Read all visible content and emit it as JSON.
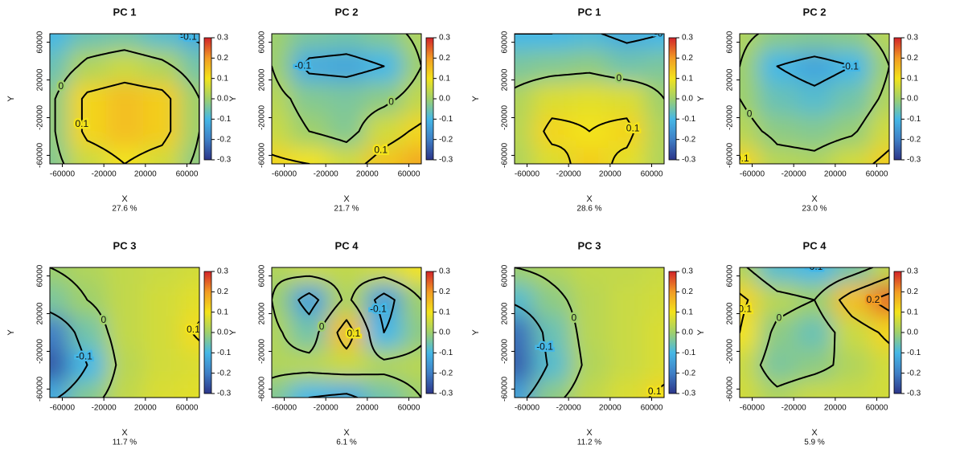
{
  "chart_data": [
    {
      "type": "heatmap",
      "title": "PC 1",
      "xlabel": "X",
      "ylabel": "Y",
      "subtitle": "27.6 %",
      "xlim": [
        -72000,
        72000
      ],
      "ylim": [
        -69000,
        69000
      ],
      "xticks": [
        -60000,
        -20000,
        20000,
        60000
      ],
      "yticks": [
        -60000,
        -20000,
        20000,
        60000
      ],
      "z": [
        [
          -0.1,
          -0.06,
          -0.05,
          -0.08,
          -0.12
        ],
        [
          -0.06,
          0.02,
          0.05,
          0.02,
          -0.05
        ],
        [
          -0.02,
          0.12,
          0.15,
          0.13,
          0.0
        ],
        [
          -0.02,
          0.12,
          0.15,
          0.13,
          0.0
        ],
        [
          -0.03,
          0.05,
          0.1,
          0.06,
          -0.02
        ]
      ],
      "contours": [
        -0.1,
        0,
        0.1
      ],
      "clim": [
        -0.3,
        0.3
      ],
      "cticks": [
        0.3,
        0.2,
        0.1,
        {
          "value": 0,
          "label": "0.0"
        },
        -0.1,
        -0.2,
        -0.3
      ],
      "colors": [
        "#2c3589",
        "#3f7fc6",
        "#45b7e6",
        "#9fd06c",
        "#f3e31b",
        "#f29b24",
        "#d2232a"
      ]
    },
    {
      "type": "heatmap",
      "title": "PC 2",
      "xlabel": "X",
      "ylabel": "Y",
      "subtitle": "21.7 %",
      "xlim": [
        -72000,
        72000
      ],
      "ylim": [
        -69000,
        69000
      ],
      "xticks": [
        -60000,
        -20000,
        20000,
        60000
      ],
      "yticks": [
        -60000,
        -20000,
        20000,
        60000
      ],
      "z": [
        [
          0.0,
          -0.04,
          -0.05,
          -0.03,
          0.02
        ],
        [
          0.0,
          -0.12,
          -0.13,
          -0.1,
          0.0
        ],
        [
          0.03,
          -0.03,
          -0.04,
          -0.02,
          0.04
        ],
        [
          0.05,
          0.0,
          -0.03,
          0.06,
          0.12
        ],
        [
          0.12,
          0.1,
          0.06,
          0.14,
          0.18
        ]
      ],
      "contours": [
        -0.1,
        0,
        0.1
      ],
      "clim": [
        -0.3,
        0.3
      ],
      "cticks": [
        0.3,
        0.2,
        0.1,
        {
          "value": 0,
          "label": "0.0"
        },
        -0.1,
        -0.2,
        -0.3
      ],
      "colors": [
        "#2c3589",
        "#3f7fc6",
        "#45b7e6",
        "#9fd06c",
        "#f3e31b",
        "#f29b24",
        "#d2232a"
      ]
    },
    {
      "type": "heatmap",
      "title": "PC 1",
      "xlabel": "X",
      "ylabel": "Y",
      "subtitle": "28.6 %",
      "xlim": [
        -72000,
        72000
      ],
      "ylim": [
        -69000,
        69000
      ],
      "xticks": [
        -60000,
        -20000,
        20000,
        60000
      ],
      "yticks": [
        -60000,
        -20000,
        20000,
        60000
      ],
      "z": [
        [
          -0.1,
          -0.1,
          -0.09,
          -0.12,
          -0.1
        ],
        [
          -0.04,
          -0.03,
          -0.02,
          -0.05,
          -0.04
        ],
        [
          0.02,
          0.07,
          0.08,
          0.07,
          0.0
        ],
        [
          0.03,
          0.12,
          0.1,
          0.12,
          0.02
        ],
        [
          0.02,
          0.07,
          0.13,
          0.08,
          0.02
        ]
      ],
      "contours": [
        -0.1,
        0,
        0.1
      ],
      "clim": [
        -0.3,
        0.3
      ],
      "cticks": [
        0.3,
        0.2,
        0.1,
        {
          "value": 0,
          "label": "0.0"
        },
        -0.1,
        -0.2,
        -0.3
      ],
      "colors": [
        "#2c3589",
        "#3f7fc6",
        "#45b7e6",
        "#9fd06c",
        "#f3e31b",
        "#f29b24",
        "#d2232a"
      ]
    },
    {
      "type": "heatmap",
      "title": "PC 2",
      "xlabel": "X",
      "ylabel": "Y",
      "subtitle": "23.0 %",
      "xlim": [
        -72000,
        72000
      ],
      "ylim": [
        -69000,
        69000
      ],
      "xticks": [
        -60000,
        -20000,
        20000,
        60000
      ],
      "yticks": [
        -60000,
        -20000,
        20000,
        60000
      ],
      "z": [
        [
          0.02,
          -0.02,
          -0.03,
          -0.02,
          0.03
        ],
        [
          0.0,
          -0.1,
          -0.13,
          -0.1,
          0.0
        ],
        [
          0.0,
          -0.06,
          -0.08,
          -0.05,
          0.02
        ],
        [
          0.03,
          -0.02,
          -0.03,
          -0.01,
          0.06
        ],
        [
          0.12,
          0.03,
          0.02,
          0.06,
          0.13
        ]
      ],
      "contours": [
        -0.1,
        0,
        0.1
      ],
      "clim": [
        -0.3,
        0.3
      ],
      "cticks": [
        0.3,
        0.2,
        0.1,
        {
          "value": 0,
          "label": "0.0"
        },
        -0.1,
        -0.2,
        -0.3
      ],
      "colors": [
        "#2c3589",
        "#3f7fc6",
        "#45b7e6",
        "#9fd06c",
        "#f3e31b",
        "#f29b24",
        "#d2232a"
      ]
    },
    {
      "type": "heatmap",
      "title": "PC 3",
      "xlabel": "X",
      "ylabel": "Y",
      "subtitle": "11.7 %",
      "xlim": [
        -72000,
        72000
      ],
      "ylim": [
        -69000,
        69000
      ],
      "xticks": [
        -60000,
        -20000,
        20000,
        60000
      ],
      "yticks": [
        -60000,
        -20000,
        20000,
        60000
      ],
      "z": [
        [
          0.0,
          0.02,
          0.04,
          0.05,
          0.06
        ],
        [
          -0.04,
          0.0,
          0.04,
          0.06,
          0.08
        ],
        [
          -0.2,
          -0.05,
          0.04,
          0.06,
          0.11
        ],
        [
          -0.25,
          -0.1,
          0.03,
          0.06,
          0.07
        ],
        [
          -0.12,
          -0.03,
          0.04,
          0.07,
          0.08
        ]
      ],
      "contours": [
        -0.1,
        0,
        0.1
      ],
      "clim": [
        -0.3,
        0.3
      ],
      "cticks": [
        0.3,
        0.2,
        0.1,
        {
          "value": 0,
          "label": "0.0"
        },
        -0.1,
        -0.2,
        -0.3
      ],
      "colors": [
        "#2c3589",
        "#3f7fc6",
        "#45b7e6",
        "#9fd06c",
        "#f3e31b",
        "#f29b24",
        "#d2232a"
      ]
    },
    {
      "type": "heatmap",
      "title": "PC 4",
      "xlabel": "X",
      "ylabel": "Y",
      "subtitle": "6.1 %",
      "xlim": [
        -72000,
        72000
      ],
      "ylim": [
        -69000,
        69000
      ],
      "xticks": [
        -60000,
        -20000,
        20000,
        60000
      ],
      "yticks": [
        -60000,
        -20000,
        20000,
        60000
      ],
      "z": [
        [
          0.02,
          0.05,
          0.04,
          0.06,
          0.1
        ],
        [
          0.0,
          -0.14,
          0.02,
          -0.14,
          0.0
        ],
        [
          0.02,
          -0.05,
          0.15,
          -0.1,
          -0.02
        ],
        [
          0.02,
          0.03,
          0.05,
          0.02,
          0.03
        ],
        [
          -0.03,
          -0.1,
          -0.12,
          -0.05,
          0.0
        ]
      ],
      "contours": [
        -0.1,
        0,
        0.1
      ],
      "clim": [
        -0.3,
        0.3
      ],
      "cticks": [
        0.3,
        0.2,
        0.1,
        {
          "value": 0,
          "label": "0.0"
        },
        -0.1,
        -0.2,
        -0.3
      ],
      "colors": [
        "#2c3589",
        "#3f7fc6",
        "#45b7e6",
        "#9fd06c",
        "#f3e31b",
        "#f29b24",
        "#d2232a"
      ]
    },
    {
      "type": "heatmap",
      "title": "PC 3",
      "xlabel": "X",
      "ylabel": "Y",
      "subtitle": "11.2 %",
      "xlim": [
        -72000,
        72000
      ],
      "ylim": [
        -69000,
        69000
      ],
      "xticks": [
        -60000,
        -20000,
        20000,
        60000
      ],
      "yticks": [
        -60000,
        -20000,
        20000,
        60000
      ],
      "z": [
        [
          0.0,
          0.02,
          0.04,
          0.04,
          0.05
        ],
        [
          -0.08,
          -0.02,
          0.03,
          0.05,
          0.06
        ],
        [
          -0.22,
          -0.06,
          0.03,
          0.05,
          0.07
        ],
        [
          -0.24,
          -0.08,
          0.02,
          0.05,
          0.07
        ],
        [
          -0.14,
          -0.02,
          0.04,
          0.07,
          0.12
        ]
      ],
      "contours": [
        -0.1,
        0,
        0.1
      ],
      "clim": [
        -0.3,
        0.3
      ],
      "cticks": [
        0.3,
        0.2,
        0.1,
        {
          "value": 0,
          "label": "0.0"
        },
        -0.1,
        -0.2,
        -0.3
      ],
      "colors": [
        "#2c3589",
        "#3f7fc6",
        "#45b7e6",
        "#9fd06c",
        "#f3e31b",
        "#f29b24",
        "#d2232a"
      ]
    },
    {
      "type": "heatmap",
      "title": "PC 4",
      "xlabel": "X",
      "ylabel": "Y",
      "subtitle": "5.9 %",
      "xlim": [
        -72000,
        72000
      ],
      "ylim": [
        -69000,
        69000
      ],
      "xticks": [
        -60000,
        -20000,
        20000,
        60000
      ],
      "yticks": [
        -60000,
        -20000,
        20000,
        60000
      ],
      "z": [
        [
          0.02,
          -0.08,
          -0.1,
          -0.05,
          0.04
        ],
        [
          0.12,
          0.03,
          0.0,
          0.15,
          0.24
        ],
        [
          0.1,
          -0.02,
          -0.06,
          0.05,
          0.12
        ],
        [
          0.05,
          -0.04,
          -0.02,
          0.02,
          0.06
        ],
        [
          0.06,
          0.02,
          0.05,
          0.05,
          0.06
        ]
      ],
      "contours": [
        -0.1,
        0,
        0.1,
        0.2
      ],
      "clim": [
        -0.3,
        0.3
      ],
      "cticks": [
        0.3,
        0.2,
        0.1,
        {
          "value": 0,
          "label": "0.0"
        },
        -0.1,
        -0.2,
        -0.3
      ],
      "colors": [
        "#2c3589",
        "#3f7fc6",
        "#45b7e6",
        "#9fd06c",
        "#f3e31b",
        "#f29b24",
        "#d2232a"
      ]
    }
  ]
}
